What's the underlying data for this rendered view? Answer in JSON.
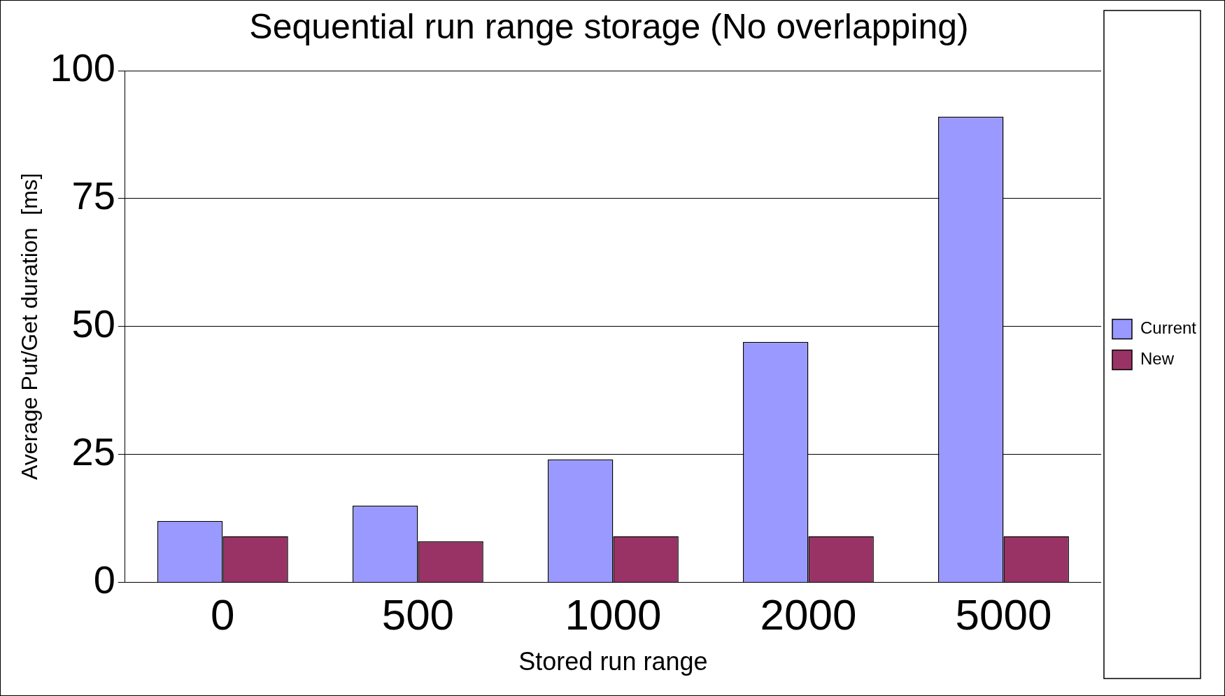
{
  "chart_data": {
    "type": "bar",
    "title": "Sequential run range storage (No overlapping)",
    "xlabel": "Stored run range",
    "ylabel": "Average Put/Get duration  [ms]",
    "categories": [
      "0",
      "500",
      "1000",
      "2000",
      "5000"
    ],
    "series": [
      {
        "name": "Current",
        "color": "#9999ff",
        "values": [
          12,
          15,
          24,
          47,
          91
        ]
      },
      {
        "name": "New",
        "color": "#993366",
        "values": [
          9,
          8,
          9,
          9,
          9
        ]
      }
    ],
    "ylim": [
      0,
      100
    ],
    "yticks": [
      0,
      25,
      50,
      75,
      100
    ],
    "grid": "y",
    "legend": "right"
  }
}
